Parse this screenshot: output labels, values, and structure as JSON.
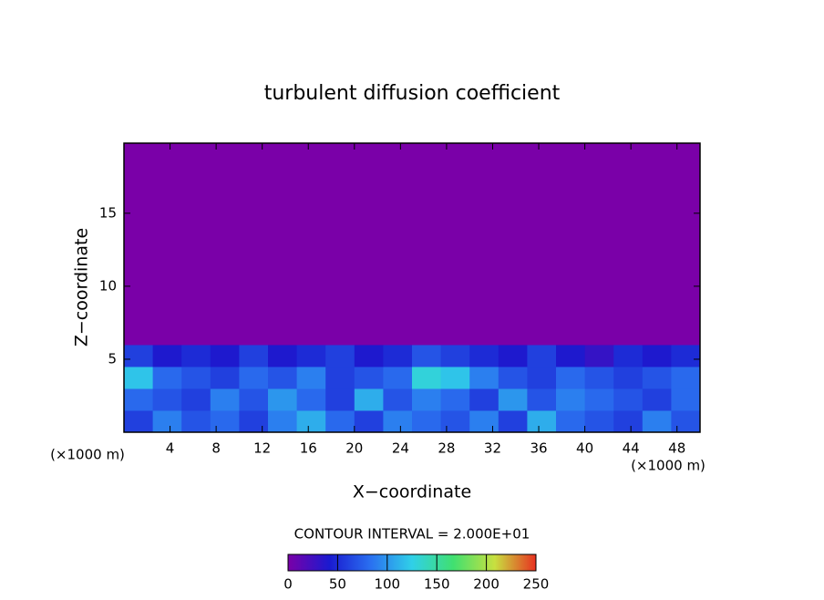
{
  "chart_data": {
    "type": "heatmap",
    "title": "turbulent diffusion coefficient",
    "xlabel": "X−coordinate",
    "ylabel": "Z−coordinate",
    "x_unit": "(×1000 m)",
    "y_unit": "(×1000 m)",
    "contour_text": "CONTOUR INTERVAL = 2.000E+01",
    "xlim": [
      0,
      50
    ],
    "ylim": [
      0,
      19.8
    ],
    "xticks": [
      4,
      8,
      12,
      16,
      20,
      24,
      28,
      32,
      36,
      40,
      44,
      48
    ],
    "yticks": [
      5,
      10,
      15
    ],
    "x_edges": [
      0,
      2.5,
      5,
      7.5,
      10,
      12.5,
      15,
      17.5,
      20,
      22.5,
      25,
      27.5,
      30,
      32.5,
      35,
      37.5,
      40,
      42.5,
      45,
      47.5,
      50
    ],
    "z_edges": [
      0,
      1.5,
      3,
      4.5,
      6,
      19.8
    ],
    "z": [
      [
        60,
        90,
        70,
        80,
        60,
        90,
        110,
        80,
        60,
        90,
        80,
        70,
        90,
        60,
        110,
        80,
        70,
        60,
        90,
        70
      ],
      [
        80,
        70,
        60,
        90,
        70,
        100,
        80,
        60,
        110,
        70,
        90,
        80,
        60,
        100,
        70,
        90,
        80,
        70,
        60,
        80
      ],
      [
        120,
        80,
        70,
        60,
        80,
        70,
        90,
        60,
        70,
        80,
        130,
        120,
        90,
        70,
        60,
        80,
        70,
        60,
        70,
        80
      ],
      [
        60,
        40,
        50,
        40,
        60,
        40,
        50,
        60,
        40,
        50,
        70,
        60,
        50,
        40,
        60,
        40,
        30,
        50,
        40,
        50
      ],
      [
        0,
        0,
        0,
        0,
        0,
        0,
        0,
        0,
        0,
        0,
        0,
        0,
        0,
        0,
        0,
        0,
        0,
        0,
        0,
        0
      ]
    ],
    "clim": [
      0,
      250
    ],
    "colorbar_ticks": [
      0,
      50,
      100,
      150,
      200,
      250
    ],
    "colormap": [
      "#7a00a8",
      "#1a1ad0",
      "#2a70f0",
      "#30d0e8",
      "#40e070",
      "#c8e040",
      "#e83020"
    ]
  }
}
